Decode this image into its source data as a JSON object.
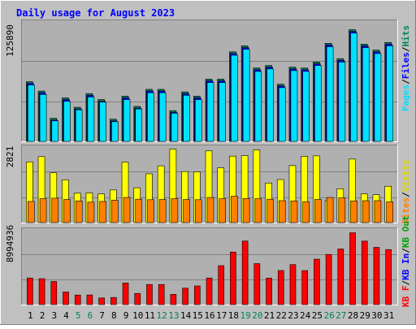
{
  "title": "Daily usage for August 2023",
  "colors": {
    "background": "#c0c0c0",
    "plot": "#b0b0b0",
    "title": "#0000ff",
    "hits": "#00805c",
    "files": "#0000ff",
    "pages": "#00e0ff",
    "visits": "#ffff00",
    "sites": "#ff8000",
    "kbin": "#00a000",
    "kbout": "#00c000",
    "kbf": "#ff0000",
    "day_weekend": "#00805c",
    "day_normal": "#000000"
  },
  "chart_data": [
    {
      "type": "bar",
      "panel": "hits-files-pages",
      "categories": [
        "1",
        "2",
        "3",
        "4",
        "5",
        "6",
        "7",
        "8",
        "9",
        "10",
        "11",
        "12",
        "13",
        "14",
        "15",
        "16",
        "17",
        "18",
        "19",
        "20",
        "21",
        "22",
        "23",
        "24",
        "25",
        "26",
        "27",
        "28",
        "29",
        "30",
        "31"
      ],
      "ymax_label": "125890",
      "ylim": [
        0,
        142000
      ],
      "series": [
        {
          "name": "Hits",
          "values": [
            70000,
            59000,
            27000,
            51000,
            40000,
            56000,
            49000,
            26000,
            53000,
            41000,
            61000,
            61000,
            36000,
            58000,
            53000,
            73000,
            73000,
            105000,
            112000,
            86000,
            89000,
            67000,
            87000,
            86000,
            93000,
            115000,
            97000,
            131000,
            114000,
            107000,
            116000
          ]
        },
        {
          "name": "Files",
          "values": [
            68000,
            57000,
            25000,
            49000,
            38000,
            54000,
            47000,
            24000,
            51000,
            39000,
            59000,
            59000,
            34000,
            56000,
            51000,
            71000,
            71000,
            103000,
            110000,
            84000,
            87000,
            65000,
            85000,
            84000,
            91000,
            113000,
            95000,
            129000,
            112000,
            105000,
            114000
          ]
        },
        {
          "name": "Pages",
          "values": [
            66000,
            55000,
            24000,
            47000,
            37000,
            52000,
            46000,
            23000,
            49000,
            38000,
            57000,
            57000,
            33000,
            54000,
            49000,
            69000,
            69000,
            101000,
            108000,
            82000,
            85000,
            63000,
            83000,
            82000,
            89000,
            111000,
            93000,
            127000,
            110000,
            103000,
            112000
          ]
        }
      ],
      "legend": [
        "Pages",
        "Files",
        "Hits"
      ]
    },
    {
      "type": "bar",
      "panel": "visits-sites",
      "categories": [
        "1",
        "2",
        "3",
        "4",
        "5",
        "6",
        "7",
        "8",
        "9",
        "10",
        "11",
        "12",
        "13",
        "14",
        "15",
        "16",
        "17",
        "18",
        "19",
        "20",
        "21",
        "22",
        "23",
        "24",
        "25",
        "26",
        "27",
        "28",
        "29",
        "30",
        "31"
      ],
      "ymax_label": "2821",
      "ylim": [
        0,
        3100
      ],
      "series": [
        {
          "name": "Visits",
          "values": [
            2440,
            2650,
            2000,
            1720,
            1180,
            1190,
            1150,
            1310,
            2430,
            1400,
            1960,
            2280,
            2950,
            2050,
            2040,
            2880,
            2200,
            2670,
            2690,
            2920,
            1590,
            1730,
            2290,
            2660,
            2680,
            880,
            1360,
            2550,
            1150,
            1120,
            1460
          ]
        },
        {
          "name": "Sites",
          "values": [
            850,
            960,
            980,
            930,
            870,
            820,
            850,
            900,
            1010,
            940,
            920,
            930,
            960,
            930,
            920,
            1010,
            960,
            1060,
            970,
            960,
            940,
            880,
            870,
            840,
            930,
            1010,
            990,
            870,
            880,
            880,
            830
          ]
        }
      ],
      "legend": [
        "Sites",
        "Visits"
      ]
    },
    {
      "type": "bar",
      "panel": "kbf-kbin-kbout",
      "categories": [
        "1",
        "2",
        "3",
        "4",
        "5",
        "6",
        "7",
        "8",
        "9",
        "10",
        "11",
        "12",
        "13",
        "14",
        "15",
        "16",
        "17",
        "18",
        "19",
        "20",
        "21",
        "22",
        "23",
        "24",
        "25",
        "26",
        "27",
        "28",
        "29",
        "30",
        "31"
      ],
      "ymax_label": "8994936",
      "ylim": [
        0,
        9400000
      ],
      "series": [
        {
          "name": "KB F",
          "values": [
            3280000,
            3200000,
            2850000,
            1550000,
            1180000,
            1190000,
            820000,
            880000,
            2660000,
            1380000,
            2480000,
            2480000,
            1260000,
            2030000,
            2300000,
            3280000,
            4800000,
            6480000,
            7830000,
            5050000,
            3270000,
            4200000,
            4930000,
            4190000,
            5600000,
            6180000,
            6850000,
            8850000,
            7820000,
            7050000,
            6780000
          ]
        }
      ],
      "legend": [
        "KB F",
        "KB In",
        "KB Out"
      ]
    }
  ],
  "legends": {
    "top": [
      {
        "text": "Pages",
        "color": "#00e0ff"
      },
      {
        "text": "/",
        "color": "#000000"
      },
      {
        "text": "Files",
        "color": "#0000ff"
      },
      {
        "text": "/",
        "color": "#000000"
      },
      {
        "text": "Hits",
        "color": "#00805c"
      }
    ],
    "middle": [
      {
        "text": "Sites",
        "color": "#ff8000"
      },
      {
        "text": "/",
        "color": "#000000"
      },
      {
        "text": "Visits",
        "color": "#d8d800"
      }
    ],
    "bottom": [
      {
        "text": "KB F",
        "color": "#ff0000"
      },
      {
        "text": "/",
        "color": "#000000"
      },
      {
        "text": "KB In",
        "color": "#0000ff"
      },
      {
        "text": "/",
        "color": "#000000"
      },
      {
        "text": "KB Out",
        "color": "#00a000"
      }
    ]
  },
  "days": [
    {
      "label": "1",
      "weekend": false
    },
    {
      "label": "2",
      "weekend": false
    },
    {
      "label": "3",
      "weekend": false
    },
    {
      "label": "4",
      "weekend": false
    },
    {
      "label": "5",
      "weekend": true
    },
    {
      "label": "6",
      "weekend": true
    },
    {
      "label": "7",
      "weekend": false
    },
    {
      "label": "8",
      "weekend": false
    },
    {
      "label": "9",
      "weekend": false
    },
    {
      "label": "10",
      "weekend": false
    },
    {
      "label": "11",
      "weekend": false
    },
    {
      "label": "12",
      "weekend": true
    },
    {
      "label": "13",
      "weekend": true
    },
    {
      "label": "14",
      "weekend": false
    },
    {
      "label": "15",
      "weekend": false
    },
    {
      "label": "16",
      "weekend": false
    },
    {
      "label": "17",
      "weekend": false
    },
    {
      "label": "18",
      "weekend": false
    },
    {
      "label": "19",
      "weekend": true
    },
    {
      "label": "20",
      "weekend": true
    },
    {
      "label": "21",
      "weekend": false
    },
    {
      "label": "22",
      "weekend": false
    },
    {
      "label": "23",
      "weekend": false
    },
    {
      "label": "24",
      "weekend": false
    },
    {
      "label": "25",
      "weekend": false
    },
    {
      "label": "26",
      "weekend": true
    },
    {
      "label": "27",
      "weekend": true
    },
    {
      "label": "28",
      "weekend": false
    },
    {
      "label": "29",
      "weekend": false
    },
    {
      "label": "30",
      "weekend": false
    },
    {
      "label": "31",
      "weekend": false
    }
  ]
}
